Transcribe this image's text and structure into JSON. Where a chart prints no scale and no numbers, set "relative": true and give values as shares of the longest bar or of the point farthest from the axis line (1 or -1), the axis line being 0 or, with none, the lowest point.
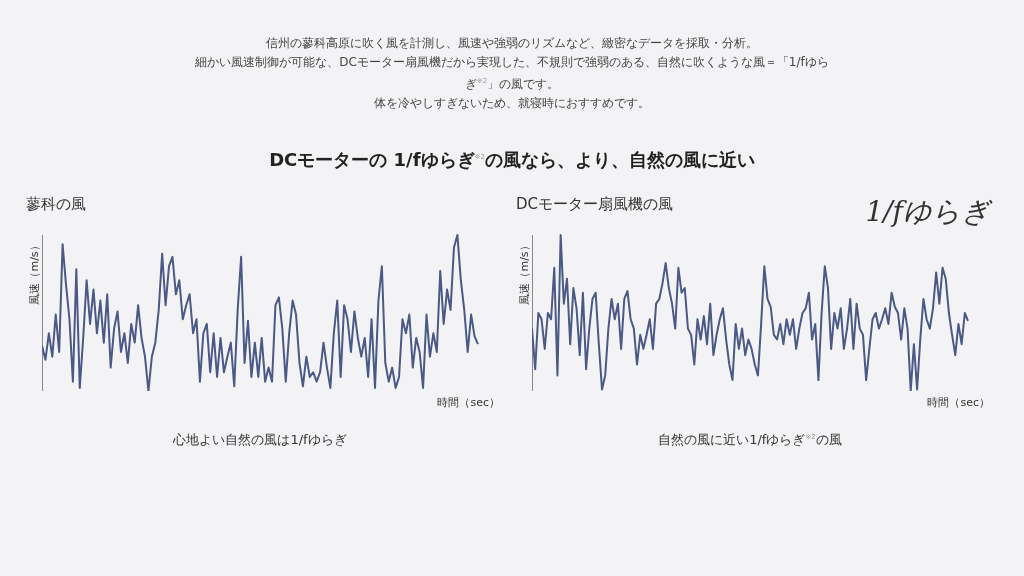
{
  "chart_data": [
    {
      "type": "line",
      "title": "蓼科の風",
      "ylabel": "風速（m/s）",
      "xlabel": "時間（sec）",
      "relative": true,
      "tick_labels": false,
      "grid": false,
      "legend": false,
      "marker": "none",
      "line_style": "solid",
      "annotations": [
        "信州の蓼科高原に吹く風を計測し、風速や強弱のリズムなど、緻密なデータを採取・分析。",
        "細かい風速制御が可能な、DCモーター扇風機だから実現した、不規則で強弱のある、自然に吹くような風＝「1/fゆらぎ$^{※2}$」の風です。",
        "体を冷やしすぎないため、就寝時におすすめです。",
        "DCモーターの 1/fゆらぎ$^{※2}$の風なら、より、自然の風に近い",
        "心地よい自然の風は1/fゆらぎ"
      ],
      "categories": [
        null,
        null,
        null,
        null,
        null,
        null,
        null,
        null,
        null,
        null,
        null,
        null,
        null,
        null,
        null,
        null,
        null,
        null,
        null,
        null,
        null,
        null,
        null,
        null,
        null,
        null,
        null,
        null,
        null,
        null,
        null,
        null,
        null,
        null,
        null,
        null,
        null,
        null,
        null,
        null,
        null,
        null,
        null,
        null,
        null,
        null,
        null,
        null,
        null,
        null,
        null,
        null,
        null,
        null,
        null,
        null,
        null,
        null,
        null,
        null,
        null,
        null,
        null,
        null,
        null,
        null,
        null,
        null,
        null,
        null,
        null,
        null,
        null,
        null,
        null,
        null,
        null,
        null,
        null,
        null,
        null,
        null,
        null,
        null,
        null,
        null,
        null,
        null,
        null,
        null,
        null,
        null,
        null,
        null,
        null,
        null,
        null,
        null,
        null,
        null,
        null,
        null,
        null,
        null,
        null,
        null,
        null,
        null,
        null,
        null,
        null,
        null,
        null,
        null,
        null,
        null,
        null,
        null,
        null,
        null,
        null,
        null,
        null,
        null,
        null,
        null,
        null,
        null
      ],
      "series": [
        {
          "color": "#4a5985",
          "values": [
            0.29,
            0.2,
            0.37,
            0.22,
            0.49,
            0.25,
            0.94,
            0.68,
            0.46,
            0.06,
            0.78,
            0.02,
            0.34,
            0.71,
            0.43,
            0.65,
            0.37,
            0.58,
            0.31,
            0.62,
            0.15,
            0.4,
            0.51,
            0.25,
            0.37,
            0.18,
            0.43,
            0.31,
            0.55,
            0.34,
            0.22,
            0,
            0.22,
            0.31,
            0.52,
            0.88,
            0.55,
            0.8,
            0.86,
            0.62,
            0.71,
            0.46,
            0.55,
            0.62,
            0.37,
            0.46,
            0.06,
            0.37,
            0.43,
            0.12,
            0.37,
            0.09,
            0.34,
            0.12,
            0.22,
            0.31,
            0.03,
            0.52,
            0.86,
            0.18,
            0.45,
            0.09,
            0.31,
            0.09,
            0.34,
            0.06,
            0.15,
            0.06,
            0.55,
            0.6,
            0.4,
            0.06,
            0.37,
            0.58,
            0.49,
            0.18,
            0.03,
            0.22,
            0.09,
            0.12,
            0.06,
            0.12,
            0.31,
            0.15,
            0.02,
            0.37,
            0.58,
            0.09,
            0.55,
            0.46,
            0.25,
            0.51,
            0.34,
            0.22,
            0.34,
            0.09,
            0.46,
            0.02,
            0.58,
            0.8,
            0.18,
            0.06,
            0.15,
            0.02,
            0.09,
            0.46,
            0.37,
            0.49,
            0.15,
            0.34,
            0.25,
            0.02,
            0.49,
            0.22,
            0.37,
            0.25,
            0.77,
            0.43,
            0.65,
            0.52,
            0.92,
            1,
            0.71,
            0.52,
            0.25,
            0.49,
            0.35,
            0.3
          ]
        }
      ]
    },
    {
      "type": "line",
      "title": "DCモーター扇風機の風",
      "ylabel": "風速（m/s）",
      "xlabel": "時間（sec）",
      "relative": true,
      "tick_labels": false,
      "grid": false,
      "legend": false,
      "marker": "none",
      "line_style": "solid",
      "annotations": [
        "1/fゆらぎ",
        "自然の風に近い1/fゆらぎ$^{※2}$の風"
      ],
      "categories": [
        null,
        null,
        null,
        null,
        null,
        null,
        null,
        null,
        null,
        null,
        null,
        null,
        null,
        null,
        null,
        null,
        null,
        null,
        null,
        null,
        null,
        null,
        null,
        null,
        null,
        null,
        null,
        null,
        null,
        null,
        null,
        null,
        null,
        null,
        null,
        null,
        null,
        null,
        null,
        null,
        null,
        null,
        null,
        null,
        null,
        null,
        null,
        null,
        null,
        null,
        null,
        null,
        null,
        null,
        null,
        null,
        null,
        null,
        null,
        null,
        null,
        null,
        null,
        null,
        null,
        null,
        null,
        null,
        null,
        null,
        null,
        null,
        null,
        null,
        null,
        null,
        null,
        null,
        null,
        null,
        null,
        null,
        null,
        null,
        null,
        null,
        null,
        null,
        null,
        null,
        null,
        null,
        null,
        null,
        null,
        null,
        null,
        null,
        null,
        null,
        null,
        null,
        null,
        null,
        null,
        null,
        null,
        null,
        null,
        null,
        null,
        null,
        null,
        null,
        null,
        null,
        null,
        null,
        null,
        null,
        null,
        null,
        null,
        null,
        null,
        null,
        null,
        null,
        null,
        null,
        null,
        null,
        null,
        null,
        null,
        null,
        null,
        null
      ],
      "series": [
        {
          "color": "#4a5985",
          "values": [
            0.4,
            0.14,
            0.5,
            0.46,
            0.27,
            0.5,
            0.46,
            0.79,
            0.1,
            1,
            0.56,
            0.72,
            0.3,
            0.66,
            0.53,
            0.23,
            0.63,
            0.14,
            0.4,
            0.59,
            0.63,
            0.3,
            0.01,
            0.1,
            0.4,
            0.59,
            0.46,
            0.56,
            0.27,
            0.59,
            0.64,
            0.46,
            0.4,
            0.17,
            0.36,
            0.27,
            0.36,
            0.46,
            0.27,
            0.56,
            0.59,
            0.69,
            0.82,
            0.66,
            0.56,
            0.4,
            0.79,
            0.63,
            0.66,
            0.4,
            0.36,
            0.17,
            0.46,
            0.33,
            0.48,
            0.3,
            0.56,
            0.23,
            0.36,
            0.46,
            0.53,
            0.33,
            0.17,
            0.07,
            0.43,
            0.27,
            0.4,
            0.23,
            0.33,
            0.27,
            0.17,
            0.1,
            0.43,
            0.8,
            0.59,
            0.54,
            0.36,
            0.33,
            0.43,
            0.3,
            0.46,
            0.36,
            0.46,
            0.27,
            0.4,
            0.5,
            0.53,
            0.63,
            0.33,
            0.43,
            0.07,
            0.5,
            0.8,
            0.66,
            0.27,
            0.5,
            0.4,
            0.53,
            0.27,
            0.4,
            0.59,
            0.27,
            0.56,
            0.4,
            0.36,
            0.07,
            0.27,
            0.46,
            0.5,
            0.4,
            0.46,
            0.53,
            0.43,
            0.63,
            0.54,
            0.5,
            0.33,
            0.53,
            0.4,
            0,
            0.3,
            0.01,
            0.33,
            0.59,
            0.46,
            0.4,
            0.53,
            0.76,
            0.56,
            0.79,
            0.72,
            0.5,
            0.36,
            0.23,
            0.43,
            0.3,
            0.5,
            0.45
          ]
        }
      ]
    }
  ]
}
